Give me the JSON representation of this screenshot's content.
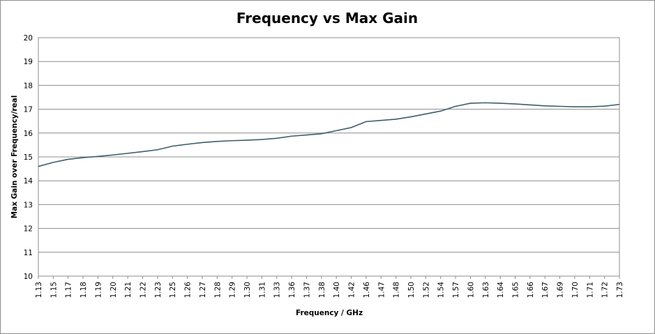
{
  "chart_data": {
    "type": "line",
    "title": "Frequency vs Max Gain",
    "xlabel": "Frequency / GHz",
    "ylabel": "Max Gain over Frequency/real",
    "ylim": [
      10,
      20
    ],
    "yticks": [
      10,
      11,
      12,
      13,
      14,
      15,
      16,
      17,
      18,
      19,
      20
    ],
    "grid": true,
    "legend": "none",
    "line_color": "#3b5e6b",
    "categories": [
      "1.13",
      "1.15",
      "1.17",
      "1.18",
      "1.19",
      "1.20",
      "1.21",
      "1.22",
      "1.23",
      "1.25",
      "1.26",
      "1.27",
      "1.28",
      "1.29",
      "1.30",
      "1.31",
      "1.33",
      "1.36",
      "1.37",
      "1.38",
      "1.40",
      "1.42",
      "1.46",
      "1.47",
      "1.48",
      "1.50",
      "1.52",
      "1.54",
      "1.57",
      "1.60",
      "1.63",
      "1.64",
      "1.65",
      "1.66",
      "1.67",
      "1.69",
      "1.70",
      "1.71",
      "1.72",
      "1.73"
    ],
    "series": [
      {
        "values": [
          14.6,
          14.77,
          14.9,
          14.97,
          15.02,
          15.08,
          15.15,
          15.22,
          15.3,
          15.45,
          15.53,
          15.6,
          15.65,
          15.68,
          15.7,
          15.73,
          15.78,
          15.87,
          15.92,
          15.97,
          16.1,
          16.23,
          16.48,
          16.53,
          16.58,
          16.68,
          16.8,
          16.92,
          17.12,
          17.25,
          17.27,
          17.25,
          17.22,
          17.18,
          17.14,
          17.12,
          17.1,
          17.1,
          17.13,
          17.2
        ]
      }
    ]
  }
}
